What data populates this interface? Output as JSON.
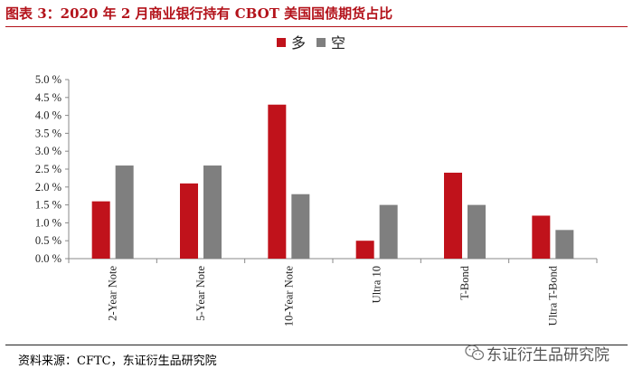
{
  "title": "图表 3：2020 年 2 月商业银行持有 CBOT 美国国债期货占比",
  "source": "资料来源：CFTC，东证衍生品研究院",
  "watermark": "东证衍生品研究院",
  "colors": {
    "long": "#c0121b",
    "short": "#7f7f7f",
    "title": "#b3121a"
  },
  "chart_data": {
    "type": "bar",
    "title": "",
    "xlabel": "",
    "ylabel": "",
    "categories": [
      "2-Year Note",
      "5-Year Note",
      "10-Year Note",
      "Ultra 10",
      "T-Bond",
      "Ultra T-Bond"
    ],
    "series": [
      {
        "name": "多",
        "color": "#c0121b",
        "values": [
          1.6,
          2.1,
          4.3,
          0.5,
          2.4,
          1.2
        ]
      },
      {
        "name": "空",
        "color": "#7f7f7f",
        "values": [
          2.6,
          2.6,
          1.8,
          1.5,
          1.5,
          0.8
        ]
      }
    ],
    "ylim": [
      0,
      5.0
    ],
    "yticks": [
      "0.0 %",
      "0.5 %",
      "1.0 %",
      "1.5 %",
      "2.0 %",
      "2.5 %",
      "3.0 %",
      "3.5 %",
      "4.0 %",
      "4.5 %",
      "5.0 %"
    ],
    "grid": false,
    "legend_position": "top-center"
  }
}
